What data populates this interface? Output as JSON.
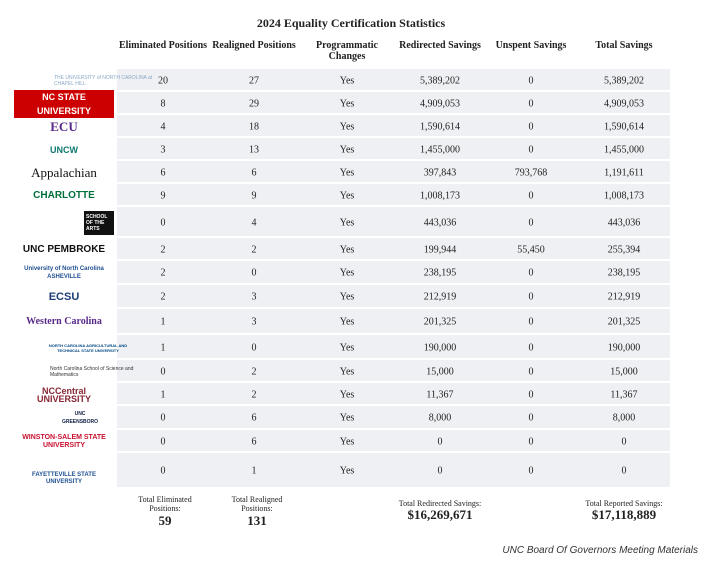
{
  "title": "2024 Equality Certification Statistics",
  "table": {
    "headers": [
      "Eliminated Positions",
      "Realigned Positions",
      "Programmatic Changes",
      "Redirected Savings",
      "Unspent Savings",
      "Total Savings"
    ],
    "rows": [
      {
        "logo": "THE UNIVERSITY of NORTH CAROLINA at CHAPEL HILL",
        "cells": [
          "20",
          "27",
          "Yes",
          "5,389,202",
          "0",
          "5,389,202"
        ]
      },
      {
        "logo": "NC STATE UNIVERSITY",
        "cells": [
          "8",
          "29",
          "Yes",
          "4,909,053",
          "0",
          "4,909,053"
        ]
      },
      {
        "logo": "ECU",
        "cells": [
          "4",
          "18",
          "Yes",
          "1,590,614",
          "0",
          "1,590,614"
        ]
      },
      {
        "logo": "UNCW",
        "cells": [
          "3",
          "13",
          "Yes",
          "1,455,000",
          "0",
          "1,455,000"
        ]
      },
      {
        "logo": "Appalachian",
        "cells": [
          "6",
          "6",
          "Yes",
          "397,843",
          "793,768",
          "1,191,611"
        ]
      },
      {
        "logo": "CHARLOTTE",
        "cells": [
          "9",
          "9",
          "Yes",
          "1,008,173",
          "0",
          "1,008,173"
        ]
      },
      {
        "logo": "SCHOOL OF THE ARTS",
        "cells": [
          "0",
          "4",
          "Yes",
          "443,036",
          "0",
          "443,036"
        ]
      },
      {
        "logo": "UNC PEMBROKE",
        "cells": [
          "2",
          "2",
          "Yes",
          "199,944",
          "55,450",
          "255,394"
        ]
      },
      {
        "logo": "University of North Carolina ASHEVILLE",
        "cells": [
          "2",
          "0",
          "Yes",
          "238,195",
          "0",
          "238,195"
        ]
      },
      {
        "logo": "ECSU",
        "cells": [
          "2",
          "3",
          "Yes",
          "212,919",
          "0",
          "212,919"
        ]
      },
      {
        "logo": "Western Carolina",
        "cells": [
          "1",
          "3",
          "Yes",
          "201,325",
          "0",
          "201,325"
        ]
      },
      {
        "logo": "NORTH CAROLINA AGRICULTURAL AND TECHNICAL STATE UNIVERSITY",
        "cells": [
          "1",
          "0",
          "Yes",
          "190,000",
          "0",
          "190,000"
        ]
      },
      {
        "logo": "North Carolina School of Science and Mathematics",
        "cells": [
          "0",
          "2",
          "Yes",
          "15,000",
          "0",
          "15,000"
        ]
      },
      {
        "logo": "NCCentral UNIVERSITY",
        "cells": [
          "1",
          "2",
          "Yes",
          "11,367",
          "0",
          "11,367"
        ]
      },
      {
        "logo": "UNC GREENSBORO",
        "cells": [
          "0",
          "6",
          "Yes",
          "8,000",
          "0",
          "8,000"
        ]
      },
      {
        "logo": "WINSTON-SALEM STATE UNIVERSITY",
        "cells": [
          "0",
          "6",
          "Yes",
          "0",
          "0",
          "0"
        ]
      },
      {
        "logo": "FAYETTEVILLE STATE UNIVERSITY",
        "cells": [
          "0",
          "1",
          "Yes",
          "0",
          "0",
          "0"
        ]
      }
    ]
  },
  "totals": [
    {
      "label": "Total Eliminated Positions:",
      "value": "59"
    },
    {
      "label": "Total Realigned Positions:",
      "value": "131"
    },
    {
      "label": "Total Redirected Savings:",
      "value": "$16,269,671"
    },
    {
      "label": "Total Reported Savings:",
      "value": "$17,118,889"
    }
  ],
  "footer": "UNC Board Of Governors Meeting Materials"
}
